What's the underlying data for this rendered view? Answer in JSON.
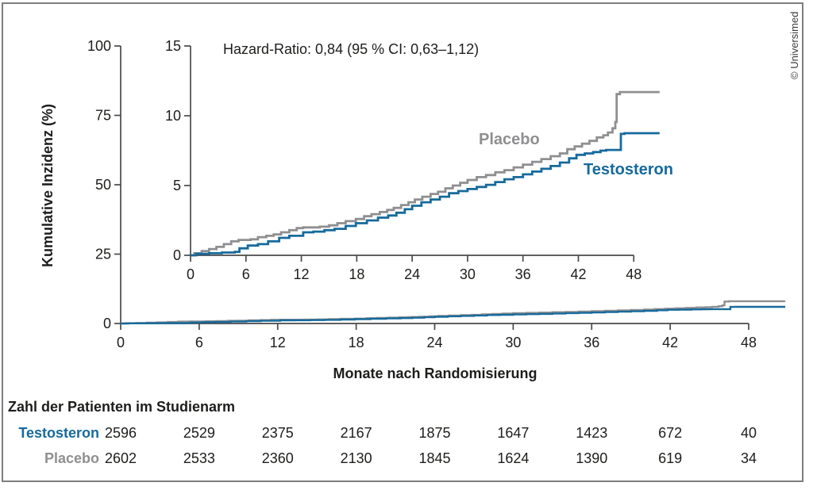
{
  "copyright": "© Universimed",
  "chart_data": {
    "type": "line",
    "subtype": "kaplan-meier-cumulative-incidence-steps",
    "title": "",
    "xlabel": "Monate nach Randomisierung",
    "ylabel": "Kumulative Inzidenz (%)",
    "annotation": "Hazard-Ratio: 0,84 (95 % CI: 0,63–1,12)",
    "grid": "off",
    "end_month": 50.8,
    "main_axis": {
      "x_ticks": [
        0,
        6,
        12,
        18,
        24,
        30,
        36,
        42,
        48
      ],
      "y_ticks": [
        0,
        25,
        50,
        75,
        100
      ],
      "xlim": [
        0,
        48
      ],
      "ylim": [
        0,
        100
      ]
    },
    "inset_axis": {
      "x_ticks": [
        0,
        6,
        12,
        18,
        24,
        30,
        36,
        42,
        48
      ],
      "y_ticks": [
        0,
        5,
        10,
        15
      ],
      "xlim": [
        0,
        48
      ],
      "ylim": [
        0,
        15
      ]
    },
    "series": [
      {
        "name": "Placebo",
        "color": "#8f8f91",
        "points": [
          [
            0,
            0
          ],
          [
            0.4,
            0.15
          ],
          [
            1.2,
            0.3
          ],
          [
            2,
            0.45
          ],
          [
            2.8,
            0.6
          ],
          [
            3.6,
            0.8
          ],
          [
            4.4,
            1.0
          ],
          [
            5.2,
            1.1
          ],
          [
            6.5,
            1.15
          ],
          [
            7.3,
            1.3
          ],
          [
            8.2,
            1.4
          ],
          [
            9,
            1.5
          ],
          [
            9.8,
            1.65
          ],
          [
            10.7,
            1.8
          ],
          [
            11.5,
            1.95
          ],
          [
            12.2,
            2.0
          ],
          [
            14,
            2.05
          ],
          [
            15,
            2.15
          ],
          [
            15.9,
            2.3
          ],
          [
            16.8,
            2.45
          ],
          [
            17.9,
            2.6
          ],
          [
            18.8,
            2.8
          ],
          [
            19.6,
            2.95
          ],
          [
            20.5,
            3.1
          ],
          [
            21.3,
            3.25
          ],
          [
            22,
            3.4
          ],
          [
            22.8,
            3.6
          ],
          [
            23.6,
            3.8
          ],
          [
            24.3,
            4.0
          ],
          [
            25.1,
            4.2
          ],
          [
            26,
            4.4
          ],
          [
            26.8,
            4.55
          ],
          [
            27.6,
            4.8
          ],
          [
            28.4,
            5.0
          ],
          [
            29.2,
            5.2
          ],
          [
            30,
            5.4
          ],
          [
            31,
            5.6
          ],
          [
            32,
            5.75
          ],
          [
            33,
            5.95
          ],
          [
            34,
            6.1
          ],
          [
            35,
            6.3
          ],
          [
            36,
            6.5
          ],
          [
            37,
            6.7
          ],
          [
            38,
            6.9
          ],
          [
            39,
            7.1
          ],
          [
            40,
            7.3
          ],
          [
            40.8,
            7.6
          ],
          [
            41.6,
            7.8
          ],
          [
            42.4,
            8.0
          ],
          [
            43.2,
            8.2
          ],
          [
            44,
            8.45
          ],
          [
            44.7,
            8.6
          ],
          [
            45.2,
            8.8
          ],
          [
            45.7,
            9.1
          ],
          [
            46,
            9.55
          ],
          [
            46.15,
            11.55
          ],
          [
            46.5,
            11.7
          ]
        ]
      },
      {
        "name": "Testosteron",
        "color": "#166a9c",
        "points": [
          [
            0,
            0
          ],
          [
            0.6,
            0.1
          ],
          [
            2,
            0.15
          ],
          [
            3.4,
            0.2
          ],
          [
            4.8,
            0.25
          ],
          [
            5.3,
            0.5
          ],
          [
            6.2,
            0.7
          ],
          [
            7.3,
            0.8
          ],
          [
            8.4,
            1.0
          ],
          [
            9.6,
            1.25
          ],
          [
            10.7,
            1.4
          ],
          [
            12.2,
            1.65
          ],
          [
            13.3,
            1.7
          ],
          [
            14.5,
            1.8
          ],
          [
            15.6,
            1.9
          ],
          [
            16.8,
            2.1
          ],
          [
            17.9,
            2.3
          ],
          [
            19.1,
            2.5
          ],
          [
            20.3,
            2.7
          ],
          [
            21.4,
            2.85
          ],
          [
            22.3,
            3.05
          ],
          [
            23.2,
            3.3
          ],
          [
            24,
            3.55
          ],
          [
            25,
            3.8
          ],
          [
            26,
            4.0
          ],
          [
            27,
            4.2
          ],
          [
            28,
            4.45
          ],
          [
            29,
            4.6
          ],
          [
            30,
            4.75
          ],
          [
            31,
            4.9
          ],
          [
            32,
            5.05
          ],
          [
            33,
            5.25
          ],
          [
            34,
            5.45
          ],
          [
            35,
            5.6
          ],
          [
            36,
            5.8
          ],
          [
            37,
            6.0
          ],
          [
            38,
            6.2
          ],
          [
            39,
            6.4
          ],
          [
            40,
            6.65
          ],
          [
            41,
            6.95
          ],
          [
            41.8,
            7.2
          ],
          [
            42.7,
            7.3
          ],
          [
            43.6,
            7.4
          ],
          [
            44.4,
            7.5
          ],
          [
            45,
            7.55
          ],
          [
            46.6,
            8.7
          ],
          [
            47,
            8.75
          ]
        ]
      }
    ],
    "at_risk": {
      "title": "Zahl der Patienten im Studienarm",
      "months": [
        0,
        6,
        12,
        18,
        24,
        30,
        36,
        42,
        48
      ],
      "rows": [
        {
          "name": "Testosteron",
          "color": "#166a9c",
          "values": [
            2596,
            2529,
            2375,
            2167,
            1875,
            1647,
            1423,
            672,
            40
          ]
        },
        {
          "name": "Placebo",
          "color": "#8f8f91",
          "values": [
            2602,
            2533,
            2360,
            2130,
            1845,
            1624,
            1390,
            619,
            34
          ]
        }
      ]
    }
  }
}
